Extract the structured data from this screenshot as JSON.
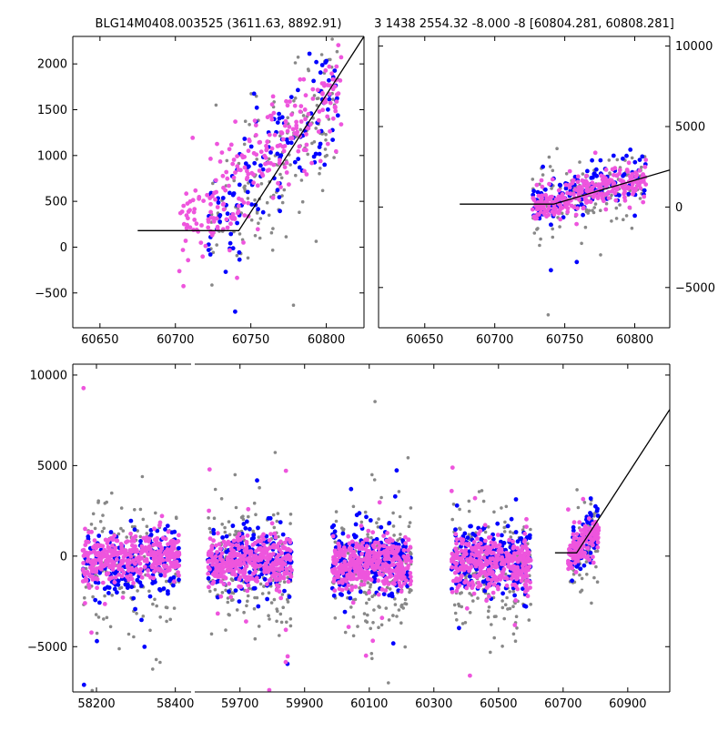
{
  "figure": {
    "title_left": "BLG14M0408.003525 (3611.63, 8892.91)",
    "title_right": "3 1438 2554.32 -8.000 -8 [60804.281, 60808.281]"
  },
  "colors": {
    "grey": "#888888",
    "blue": "#0000ff",
    "magenta": "#ee55dd",
    "model": "#000000"
  },
  "chart_data": [
    {
      "name": "zoom-left",
      "type": "scatter",
      "xlim": [
        60632,
        60825
      ],
      "ylim": [
        -880,
        2300
      ],
      "xticks": [
        60650,
        60700,
        60750,
        60800
      ],
      "yticks": [
        -500,
        0,
        500,
        1000,
        1500,
        2000
      ],
      "ytick_side": "left",
      "model": {
        "x": [
          60675,
          60742,
          60825
        ],
        "y": [
          180,
          180,
          2300
        ]
      },
      "clusters": [
        {
          "color": "grey",
          "n": 170,
          "x0": 60722,
          "x1": 60808,
          "y_at_x0": 180,
          "y_at_x1": 1700,
          "spread": 420,
          "seed": 11
        },
        {
          "color": "blue",
          "n": 130,
          "x0": 60722,
          "x1": 60808,
          "y_at_x0": 180,
          "y_at_x1": 1700,
          "spread": 340,
          "seed": 12
        },
        {
          "color": "magenta",
          "n": 260,
          "x0": 60702,
          "x1": 60810,
          "y_at_x0": 120,
          "y_at_x1": 1700,
          "spread": 280,
          "seed": 13
        }
      ]
    },
    {
      "name": "zoom-right",
      "type": "scatter",
      "xlim": [
        60617,
        60825
      ],
      "ylim": [
        -7500,
        10600
      ],
      "xticks": [
        60650,
        60700,
        60750,
        60800
      ],
      "yticks": [
        -5000,
        0,
        5000,
        10000
      ],
      "ytick_side": "right",
      "model": {
        "x": [
          60675,
          60742,
          60825
        ],
        "y": [
          180,
          180,
          2300
        ]
      },
      "clusters": [
        {
          "color": "grey",
          "n": 150,
          "x0": 60727,
          "x1": 60808,
          "y_at_x0": 100,
          "y_at_x1": 1800,
          "spread": 1100,
          "seed": 21
        },
        {
          "color": "blue",
          "n": 140,
          "x0": 60727,
          "x1": 60808,
          "y_at_x0": 100,
          "y_at_x1": 1800,
          "spread": 700,
          "seed": 22
        },
        {
          "color": "magenta",
          "n": 280,
          "x0": 60727,
          "x1": 60808,
          "y_at_x0": 100,
          "y_at_x1": 1800,
          "spread": 500,
          "seed": 23
        }
      ]
    },
    {
      "name": "full-lightcurve",
      "type": "scatter",
      "segments": [
        {
          "xlim": [
            58140,
            58440
          ],
          "xticks": [
            58200,
            58400
          ],
          "clusters": [
            {
              "color": "grey",
              "n": 170,
              "x0": 58165,
              "x1": 58410,
              "y_at_x0": -600,
              "y_at_x1": -600,
              "spread": 1700,
              "seed": 31
            },
            {
              "color": "blue",
              "n": 200,
              "x0": 58165,
              "x1": 58410,
              "y_at_x0": -300,
              "y_at_x1": -300,
              "spread": 900,
              "seed": 32
            },
            {
              "color": "magenta",
              "n": 380,
              "x0": 58165,
              "x1": 58410,
              "y_at_x0": -100,
              "y_at_x1": -100,
              "spread": 650,
              "seed": 33
            }
          ]
        },
        {
          "xlim": [
            59560,
            61030
          ],
          "xticks": [
            59700,
            59900,
            60100,
            60300,
            60500,
            60700,
            60900
          ],
          "clusters": [
            {
              "color": "grey",
              "n": 200,
              "x0": 59600,
              "x1": 59860,
              "y_at_x0": -700,
              "y_at_x1": -700,
              "spread": 1700,
              "seed": 41
            },
            {
              "color": "blue",
              "n": 220,
              "x0": 59600,
              "x1": 59860,
              "y_at_x0": -200,
              "y_at_x1": -200,
              "spread": 900,
              "seed": 42
            },
            {
              "color": "magenta",
              "n": 380,
              "x0": 59600,
              "x1": 59860,
              "y_at_x0": -300,
              "y_at_x1": -300,
              "spread": 700,
              "seed": 43
            },
            {
              "color": "grey",
              "n": 200,
              "x0": 59985,
              "x1": 60230,
              "y_at_x0": -800,
              "y_at_x1": -800,
              "spread": 1700,
              "seed": 51
            },
            {
              "color": "blue",
              "n": 240,
              "x0": 59985,
              "x1": 60230,
              "y_at_x0": -300,
              "y_at_x1": -300,
              "spread": 900,
              "seed": 52
            },
            {
              "color": "magenta",
              "n": 380,
              "x0": 59985,
              "x1": 60230,
              "y_at_x0": -400,
              "y_at_x1": -400,
              "spread": 700,
              "seed": 53
            },
            {
              "color": "grey",
              "n": 200,
              "x0": 60355,
              "x1": 60600,
              "y_at_x0": -800,
              "y_at_x1": -800,
              "spread": 1700,
              "seed": 61
            },
            {
              "color": "blue",
              "n": 240,
              "x0": 60355,
              "x1": 60600,
              "y_at_x0": -300,
              "y_at_x1": -300,
              "spread": 1000,
              "seed": 62
            },
            {
              "color": "magenta",
              "n": 380,
              "x0": 60355,
              "x1": 60600,
              "y_at_x0": -400,
              "y_at_x1": -400,
              "spread": 700,
              "seed": 63
            },
            {
              "color": "grey",
              "n": 90,
              "x0": 60722,
              "x1": 60808,
              "y_at_x0": 0,
              "y_at_x1": 1500,
              "spread": 1000,
              "seed": 71
            },
            {
              "color": "blue",
              "n": 80,
              "x0": 60722,
              "x1": 60808,
              "y_at_x0": 0,
              "y_at_x1": 1500,
              "spread": 700,
              "seed": 72
            },
            {
              "color": "magenta",
              "n": 160,
              "x0": 60715,
              "x1": 60810,
              "y_at_x0": 0,
              "y_at_x1": 1500,
              "spread": 500,
              "seed": 73
            }
          ],
          "model": {
            "x": [
              60675,
              60742,
              61030
            ],
            "y": [
              180,
              180,
              8100
            ]
          }
        }
      ],
      "ylim": [
        -7500,
        10600
      ],
      "yticks": [
        -5000,
        0,
        5000,
        10000
      ],
      "ytick_side": "left"
    }
  ]
}
